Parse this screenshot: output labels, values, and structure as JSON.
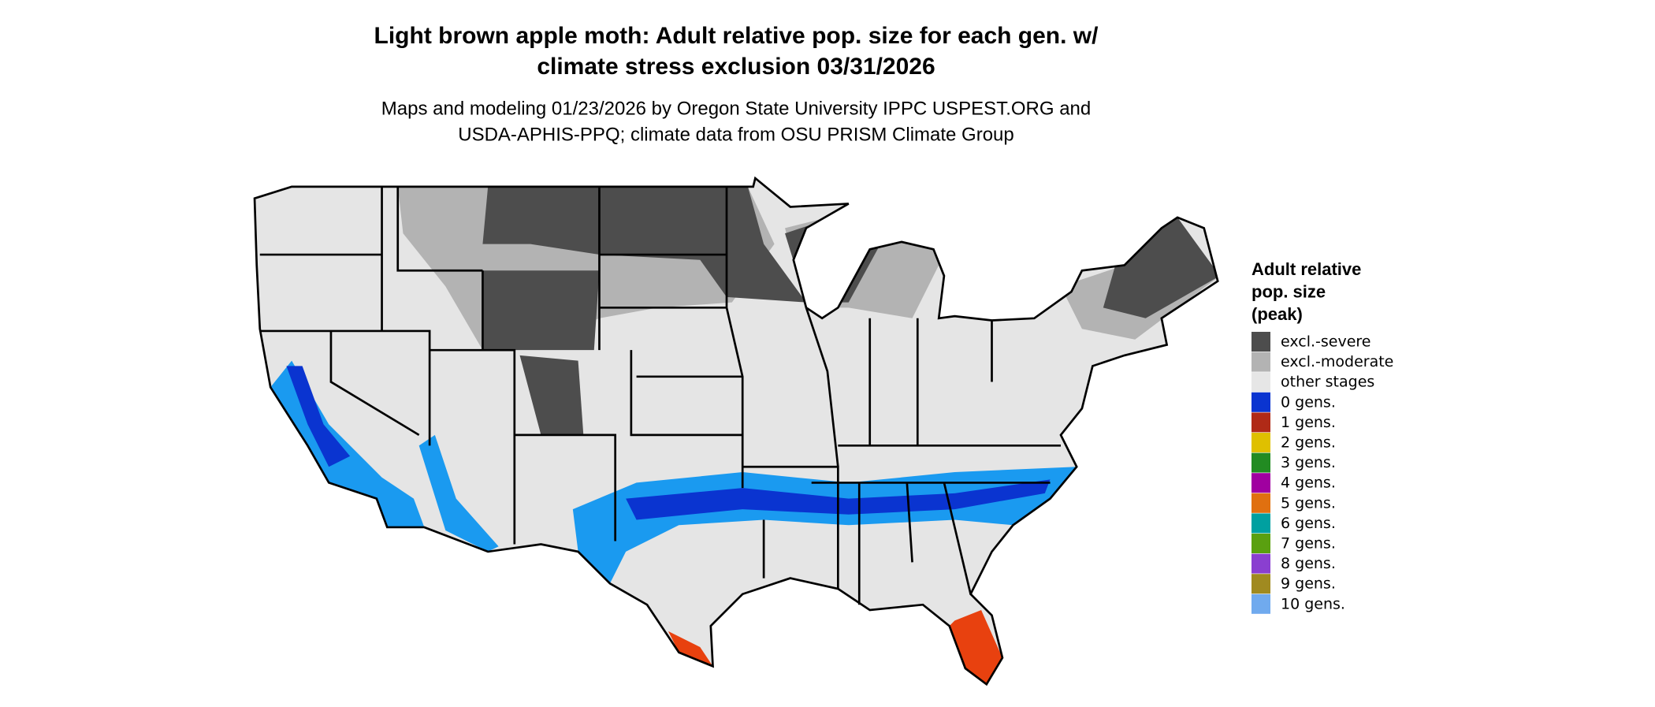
{
  "map": {
    "title": [
      "Light brown apple moth: Adult relative pop. size for each gen. w/",
      "climate stress exclusion 03/31/2026"
    ],
    "subtitle": [
      "Maps and modeling 01/23/2026 by Oregon State University IPPC USPEST.ORG and",
      "USDA-APHIS-PPQ; climate data from OSU PRISM Climate Group"
    ],
    "legend": {
      "title": [
        "Adult relative",
        "pop. size",
        "(peak)"
      ],
      "items": [
        {
          "label": "excl.-severe",
          "color": "#4d4d4d"
        },
        {
          "label": "excl.-moderate",
          "color": "#b3b3b3"
        },
        {
          "label": "other stages",
          "color": "#e6e6e6"
        },
        {
          "label": "0 gens.",
          "color": "#0a34d0"
        },
        {
          "label": "1 gens.",
          "color": "#b02a17"
        },
        {
          "label": "2 gens.",
          "color": "#dfc000"
        },
        {
          "label": "3 gens.",
          "color": "#228b22"
        },
        {
          "label": "4 gens.",
          "color": "#a000a0"
        },
        {
          "label": "5 gens.",
          "color": "#e07010"
        },
        {
          "label": "6 gens.",
          "color": "#00a0a0"
        },
        {
          "label": "7 gens.",
          "color": "#5aa010"
        },
        {
          "label": "8 gens.",
          "color": "#8a3fd0"
        },
        {
          "label": "9 gens.",
          "color": "#a08a20"
        },
        {
          "label": "10 gens.",
          "color": "#70aaee"
        }
      ]
    }
  }
}
